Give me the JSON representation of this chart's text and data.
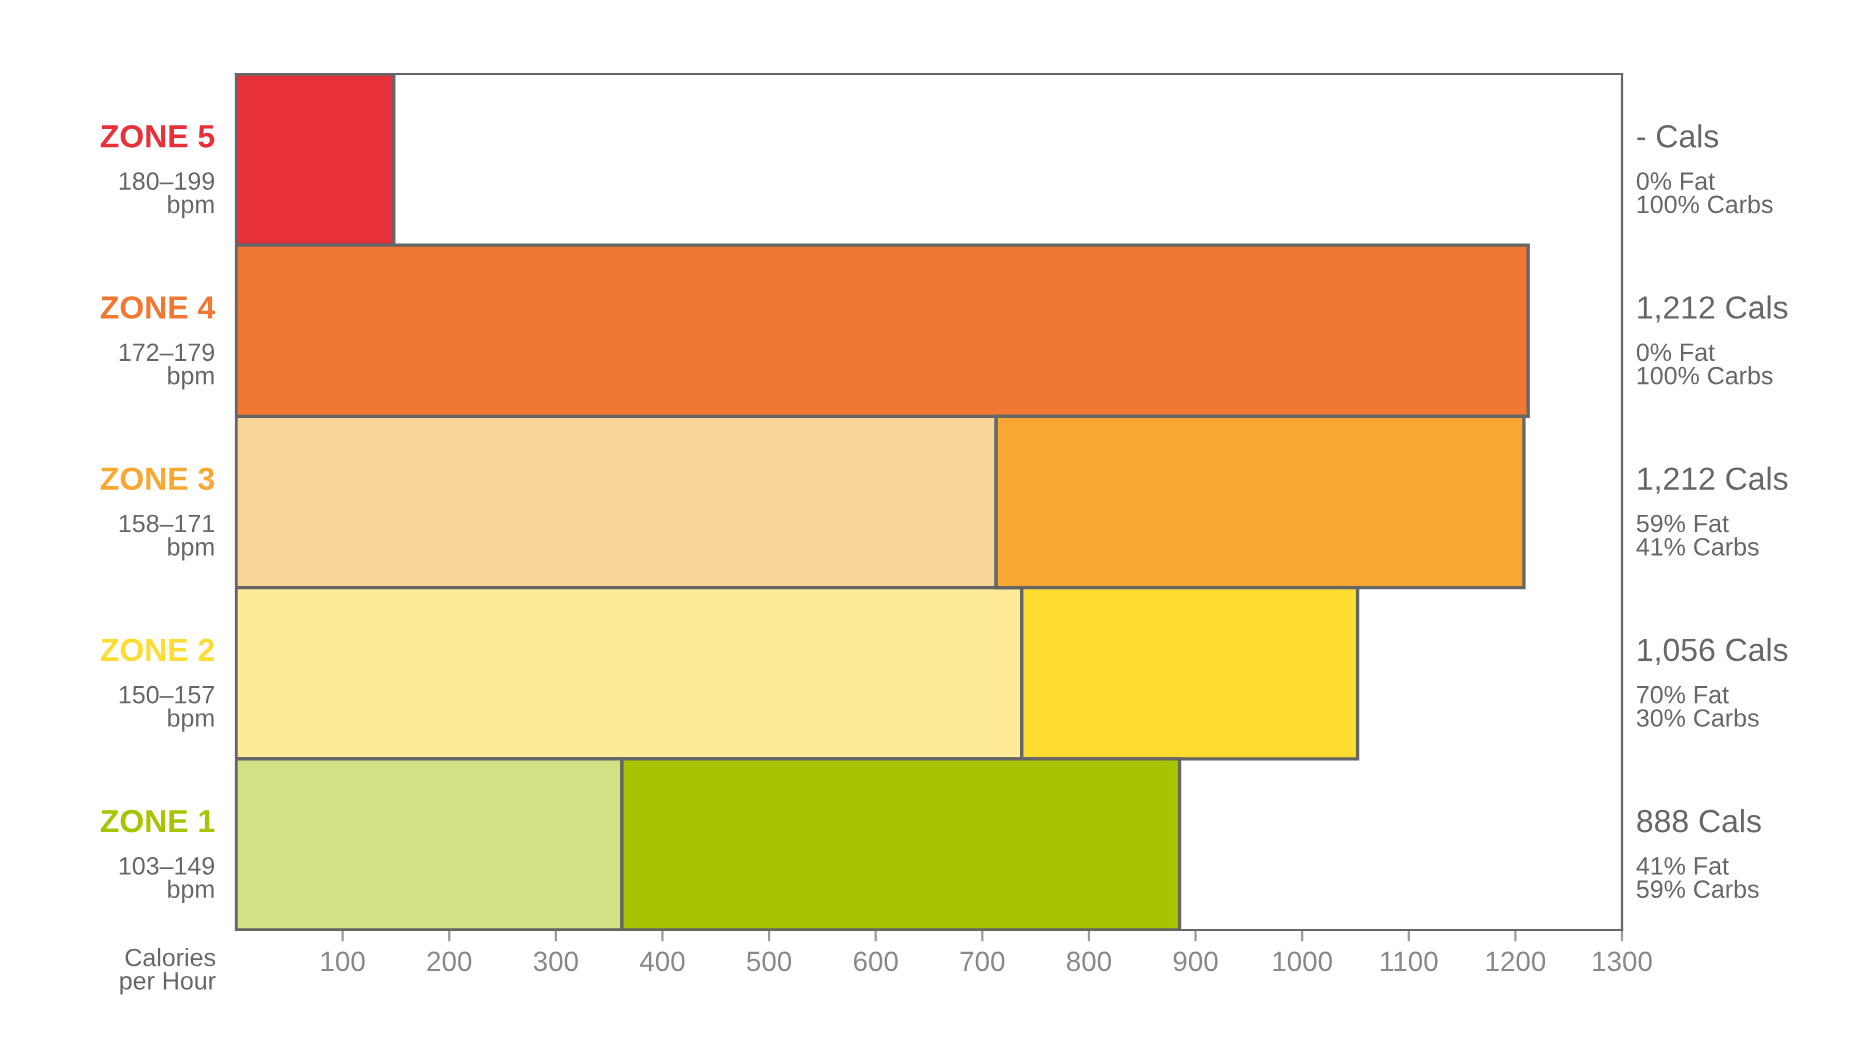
{
  "chart_data": {
    "type": "bar",
    "orientation": "horizontal",
    "stacked": true,
    "categories": [
      "ZONE 5\n180–199\nbpm",
      "ZONE 4\n172–179\nbpm",
      "ZONE 3\n158–171\nbpm",
      "ZONE 2\n150–157\nbpm",
      "ZONE 1\n103–149\nbpm"
    ],
    "series": [
      {
        "colors": [
          "#e8303a",
          "#f07832",
          "#fad59a",
          "#feeb9a",
          "#d3e086"
        ],
        "values": [
          0,
          0,
          713,
          737,
          362
        ]
      },
      {
        "colors": [
          "#e8303a",
          "#f07832",
          "#f8a832",
          "#fedc32",
          "#a8c400"
        ],
        "values": [
          148,
          1212,
          495,
          315,
          523
        ]
      }
    ],
    "xlabel": "Calories\nper Hour",
    "xlim": [
      0,
      1300
    ],
    "xticks": [
      100,
      200,
      300,
      400,
      500,
      600,
      700,
      800,
      900,
      1000,
      1100,
      1200,
      1300
    ],
    "annotations": [
      "- Cals\n0% Fat\n100% Carbs",
      "1,212 Cals\n0% Fat\n100% Carbs",
      "1,212 Cals\n59% Fat\n41% Carbs",
      "1,056 Cals\n70% Fat\n30% Carbs",
      "888 Cals\n41% Fat\n59% Carbs"
    ],
    "grid": false,
    "legend": false
  }
}
